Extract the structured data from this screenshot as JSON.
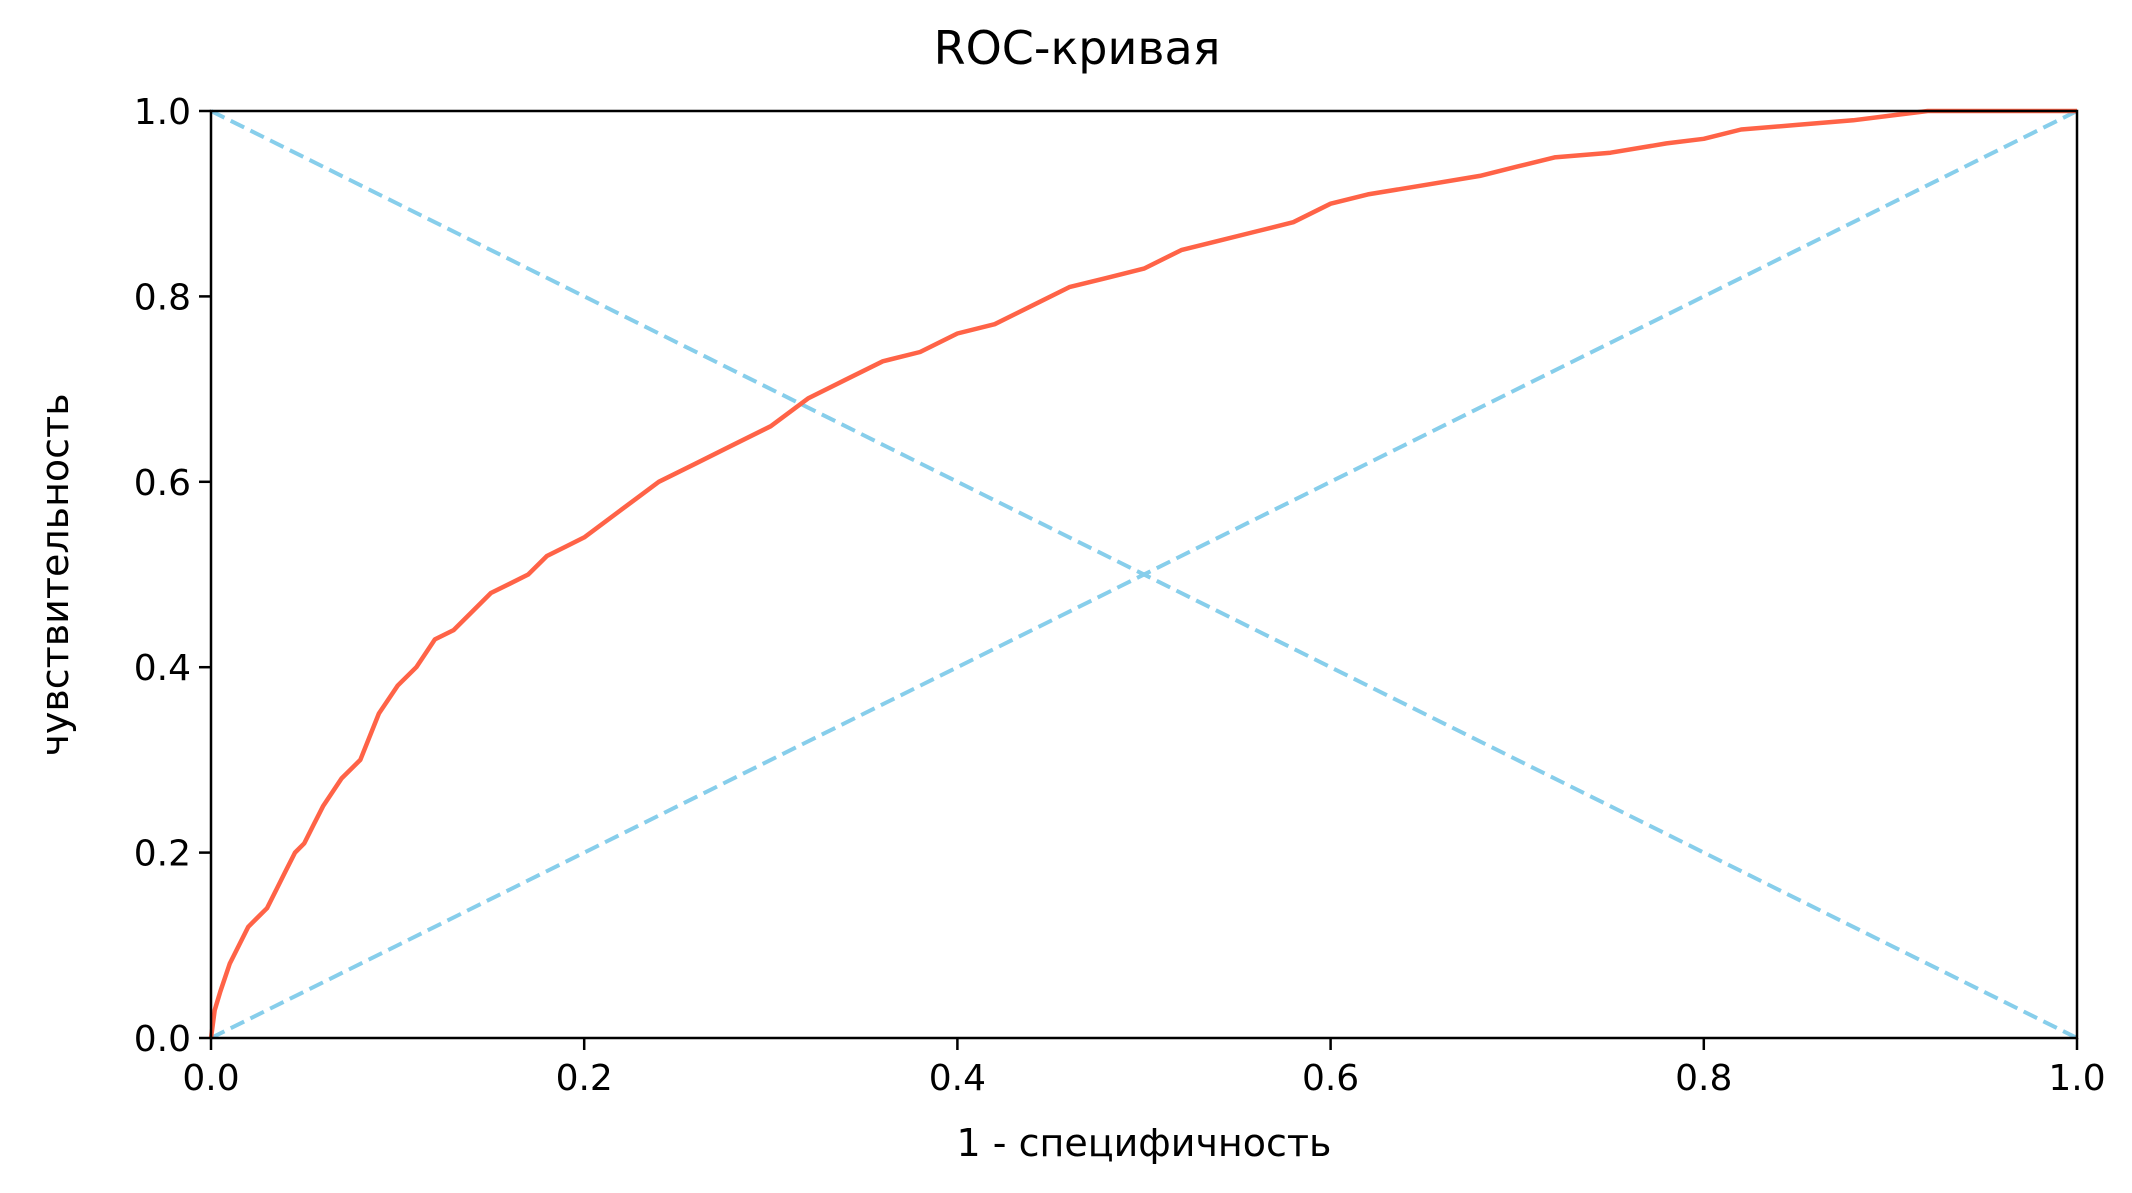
{
  "chart_data": {
    "type": "line",
    "title": "ROC-кривая",
    "xlabel": "1 - специфичность",
    "ylabel": "чувствительность",
    "xlim": [
      0.0,
      1.0
    ],
    "ylim": [
      0.0,
      1.0
    ],
    "xticks": [
      0.0,
      0.2,
      0.4,
      0.6,
      0.8,
      1.0
    ],
    "yticks": [
      0.0,
      0.2,
      0.4,
      0.6,
      0.8,
      1.0
    ],
    "xtick_labels": [
      "0.0",
      "0.2",
      "0.4",
      "0.6",
      "0.8",
      "1.0"
    ],
    "ytick_labels": [
      "0.0",
      "0.2",
      "0.4",
      "0.6",
      "0.8",
      "1.0"
    ],
    "grid": false,
    "legend": "none",
    "series": [
      {
        "style": "solid",
        "color": "#ff6347",
        "x": [
          0.0,
          0.002,
          0.005,
          0.01,
          0.015,
          0.02,
          0.025,
          0.03,
          0.035,
          0.04,
          0.045,
          0.05,
          0.055,
          0.06,
          0.07,
          0.08,
          0.09,
          0.1,
          0.11,
          0.12,
          0.13,
          0.14,
          0.15,
          0.16,
          0.17,
          0.18,
          0.19,
          0.2,
          0.22,
          0.24,
          0.26,
          0.28,
          0.3,
          0.32,
          0.34,
          0.36,
          0.38,
          0.4,
          0.42,
          0.44,
          0.46,
          0.48,
          0.5,
          0.52,
          0.54,
          0.56,
          0.58,
          0.6,
          0.62,
          0.65,
          0.68,
          0.7,
          0.72,
          0.75,
          0.78,
          0.8,
          0.82,
          0.85,
          0.88,
          0.9,
          0.92,
          0.95,
          1.0
        ],
        "y": [
          0.0,
          0.03,
          0.05,
          0.08,
          0.1,
          0.12,
          0.13,
          0.14,
          0.16,
          0.18,
          0.2,
          0.21,
          0.23,
          0.25,
          0.28,
          0.3,
          0.35,
          0.38,
          0.4,
          0.43,
          0.44,
          0.46,
          0.48,
          0.49,
          0.5,
          0.52,
          0.53,
          0.54,
          0.57,
          0.6,
          0.62,
          0.64,
          0.66,
          0.69,
          0.71,
          0.73,
          0.74,
          0.76,
          0.77,
          0.79,
          0.81,
          0.82,
          0.83,
          0.85,
          0.86,
          0.87,
          0.88,
          0.9,
          0.91,
          0.92,
          0.93,
          0.94,
          0.95,
          0.955,
          0.965,
          0.97,
          0.98,
          0.985,
          0.99,
          0.995,
          1.0,
          1.0,
          1.0
        ]
      },
      {
        "style": "dashed",
        "color": "#87ceeb",
        "x": [
          0.0,
          1.0
        ],
        "y": [
          0.0,
          1.0
        ]
      },
      {
        "style": "dashed",
        "color": "#87ceeb",
        "x": [
          0.0,
          1.0
        ],
        "y": [
          1.0,
          0.0
        ]
      }
    ]
  }
}
